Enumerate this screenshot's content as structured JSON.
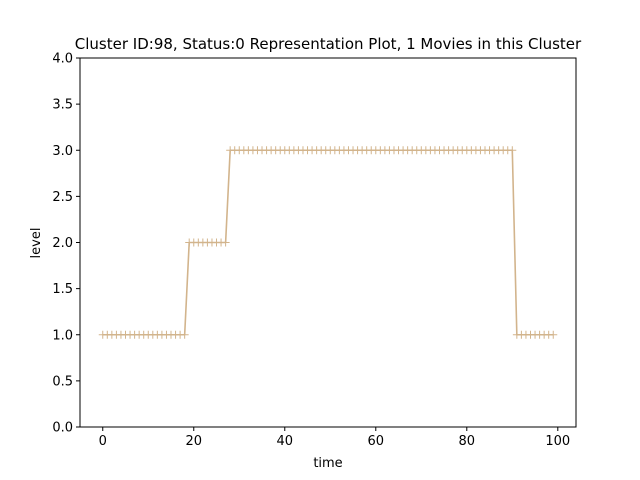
{
  "chart_data": {
    "type": "line",
    "title": "Cluster ID:98, Status:0 Representation Plot, 1 Movies in this Cluster",
    "xlabel": "time",
    "ylabel": "level",
    "xlim": [
      -5,
      104
    ],
    "ylim": [
      0,
      4
    ],
    "xticks": [
      0,
      20,
      40,
      60,
      80,
      100
    ],
    "xtick_labels": [
      "0",
      "20",
      "40",
      "60",
      "80",
      "100"
    ],
    "yticks": [
      0,
      0.5,
      1,
      1.5,
      2,
      2.5,
      3,
      3.5,
      4
    ],
    "ytick_labels": [
      "0.0",
      "0.5",
      "1.0",
      "1.5",
      "2.0",
      "2.5",
      "3.0",
      "3.5",
      "4.0"
    ],
    "grid": false,
    "marker": "+",
    "series": [
      {
        "color": "#d2b48c",
        "x": [
          0,
          1,
          2,
          3,
          4,
          5,
          6,
          7,
          8,
          9,
          10,
          11,
          12,
          13,
          14,
          15,
          16,
          17,
          18,
          19,
          20,
          21,
          22,
          23,
          24,
          25,
          26,
          27,
          28,
          29,
          30,
          31,
          32,
          33,
          34,
          35,
          36,
          37,
          38,
          39,
          40,
          41,
          42,
          43,
          44,
          45,
          46,
          47,
          48,
          49,
          50,
          51,
          52,
          53,
          54,
          55,
          56,
          57,
          58,
          59,
          60,
          61,
          62,
          63,
          64,
          65,
          66,
          67,
          68,
          69,
          70,
          71,
          72,
          73,
          74,
          75,
          76,
          77,
          78,
          79,
          80,
          81,
          82,
          83,
          84,
          85,
          86,
          87,
          88,
          89,
          90,
          91,
          92,
          93,
          94,
          95,
          96,
          97,
          98,
          99
        ],
        "y": [
          1,
          1,
          1,
          1,
          1,
          1,
          1,
          1,
          1,
          1,
          1,
          1,
          1,
          1,
          1,
          1,
          1,
          1,
          1,
          2,
          2,
          2,
          2,
          2,
          2,
          2,
          2,
          2,
          3,
          3,
          3,
          3,
          3,
          3,
          3,
          3,
          3,
          3,
          3,
          3,
          3,
          3,
          3,
          3,
          3,
          3,
          3,
          3,
          3,
          3,
          3,
          3,
          3,
          3,
          3,
          3,
          3,
          3,
          3,
          3,
          3,
          3,
          3,
          3,
          3,
          3,
          3,
          3,
          3,
          3,
          3,
          3,
          3,
          3,
          3,
          3,
          3,
          3,
          3,
          3,
          3,
          3,
          3,
          3,
          3,
          3,
          3,
          3,
          3,
          3,
          3,
          1,
          1,
          1,
          1,
          1,
          1,
          1,
          1,
          1
        ]
      }
    ]
  }
}
